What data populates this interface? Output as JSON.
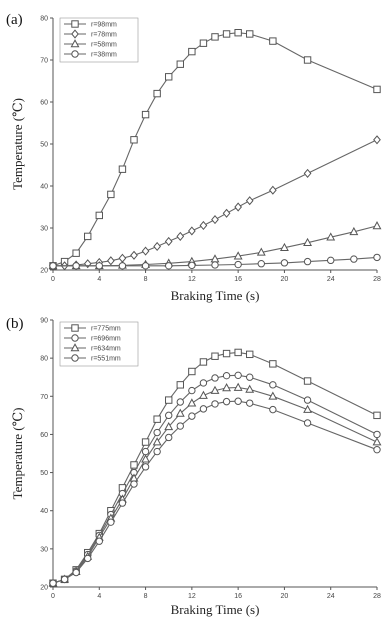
{
  "chart_data": [
    {
      "type": "line",
      "panel_label": "(a)",
      "xlabel": "Braking Time (s)",
      "ylabel": "Temperature (℃)",
      "xlim": [
        0,
        28
      ],
      "ylim": [
        20,
        80
      ],
      "xticks": [
        0,
        4,
        8,
        12,
        16,
        20,
        24,
        28
      ],
      "yticks": [
        20,
        30,
        40,
        50,
        60,
        70,
        80
      ],
      "x_tick_labels": [
        "0",
        "4",
        "8",
        "12",
        "16",
        "20",
        "24",
        "28"
      ],
      "y_tick_labels": [
        "20",
        "30",
        "40",
        "50",
        "60",
        "70",
        "80"
      ],
      "legend_position": "top-left",
      "grid": false,
      "series": [
        {
          "name": "r=98mm",
          "marker": "square",
          "x": [
            0,
            1,
            2,
            3,
            4,
            5,
            6,
            7,
            8,
            9,
            10,
            11,
            12,
            13,
            14,
            15,
            16,
            17,
            19,
            22,
            28
          ],
          "y": [
            21,
            22,
            24,
            28,
            33,
            38,
            44,
            51,
            57,
            62,
            66,
            69,
            72,
            74,
            75.5,
            76.2,
            76.5,
            76.2,
            74.5,
            70,
            63
          ]
        },
        {
          "name": "r=78mm",
          "marker": "diamond",
          "x": [
            0,
            1,
            2,
            3,
            4,
            5,
            6,
            7,
            8,
            9,
            10,
            11,
            12,
            13,
            14,
            15,
            16,
            17,
            19,
            22,
            28
          ],
          "y": [
            21,
            21,
            21.2,
            21.5,
            21.8,
            22.2,
            22.8,
            23.5,
            24.5,
            25.6,
            26.8,
            28,
            29.3,
            30.6,
            32,
            33.5,
            35,
            36.5,
            39,
            43,
            51
          ]
        },
        {
          "name": "r=58mm",
          "marker": "triangle",
          "x": [
            0,
            2,
            4,
            6,
            8,
            10,
            12,
            14,
            16,
            18,
            20,
            22,
            24,
            26,
            28
          ],
          "y": [
            21,
            21,
            21,
            21.1,
            21.3,
            21.6,
            22,
            22.6,
            23.3,
            24.2,
            25.3,
            26.5,
            27.8,
            29.1,
            30.5
          ]
        },
        {
          "name": "r=38mm",
          "marker": "circle",
          "x": [
            0,
            2,
            4,
            6,
            8,
            10,
            12,
            14,
            16,
            18,
            20,
            22,
            24,
            26,
            28
          ],
          "y": [
            21,
            21,
            21,
            21,
            21,
            21,
            21.1,
            21.2,
            21.3,
            21.5,
            21.7,
            22,
            22.3,
            22.6,
            23
          ]
        }
      ]
    },
    {
      "type": "line",
      "panel_label": "(b)",
      "xlabel": "Braking Time (s)",
      "ylabel": "Temperature (℃)",
      "xlim": [
        0,
        28
      ],
      "ylim": [
        20,
        90
      ],
      "xticks": [
        0,
        4,
        8,
        12,
        16,
        20,
        24,
        28
      ],
      "yticks": [
        20,
        30,
        40,
        50,
        60,
        70,
        80,
        90
      ],
      "x_tick_labels": [
        "0",
        "4",
        "8",
        "12",
        "16",
        "20",
        "24",
        "28"
      ],
      "y_tick_labels": [
        "20",
        "30",
        "40",
        "50",
        "60",
        "70",
        "80",
        "90"
      ],
      "legend_position": "top-left",
      "grid": false,
      "series": [
        {
          "name": "r=775mm",
          "marker": "square",
          "x": [
            0,
            1,
            2,
            3,
            4,
            5,
            6,
            7,
            8,
            9,
            10,
            11,
            12,
            13,
            14,
            15,
            16,
            17,
            19,
            22,
            28
          ],
          "y": [
            21,
            22,
            24.5,
            29,
            34,
            40,
            46,
            52,
            58,
            64,
            69,
            73,
            76.5,
            79,
            80.5,
            81.2,
            81.5,
            81,
            78.5,
            74,
            65
          ]
        },
        {
          "name": "r=696mm",
          "marker": "circle",
          "x": [
            0,
            1,
            2,
            3,
            4,
            5,
            6,
            7,
            8,
            9,
            10,
            11,
            12,
            13,
            14,
            15,
            16,
            17,
            19,
            22,
            28
          ],
          "y": [
            21,
            22,
            24.2,
            28.5,
            33.5,
            39,
            44.5,
            50,
            55.5,
            60.5,
            65,
            68.5,
            71.5,
            73.5,
            74.8,
            75.4,
            75.5,
            75,
            73,
            69,
            60
          ]
        },
        {
          "name": "r=634mm",
          "marker": "triangle",
          "x": [
            0,
            1,
            2,
            3,
            4,
            5,
            6,
            7,
            8,
            9,
            10,
            11,
            12,
            13,
            14,
            15,
            16,
            17,
            19,
            22,
            28
          ],
          "y": [
            21,
            22,
            24,
            28,
            33,
            38,
            43,
            48.5,
            53.5,
            58,
            62,
            65.5,
            68.2,
            70.2,
            71.5,
            72.2,
            72.3,
            71.8,
            70,
            66.5,
            58
          ]
        },
        {
          "name": "r=551mm",
          "marker": "circle",
          "x": [
            0,
            1,
            2,
            3,
            4,
            5,
            6,
            7,
            8,
            9,
            10,
            11,
            12,
            13,
            14,
            15,
            16,
            17,
            19,
            22,
            28
          ],
          "y": [
            21,
            22,
            23.8,
            27.5,
            32,
            37,
            42,
            47,
            51.5,
            55.5,
            59.2,
            62.2,
            64.8,
            66.7,
            68,
            68.6,
            68.7,
            68.2,
            66.5,
            63,
            56
          ]
        }
      ]
    }
  ]
}
